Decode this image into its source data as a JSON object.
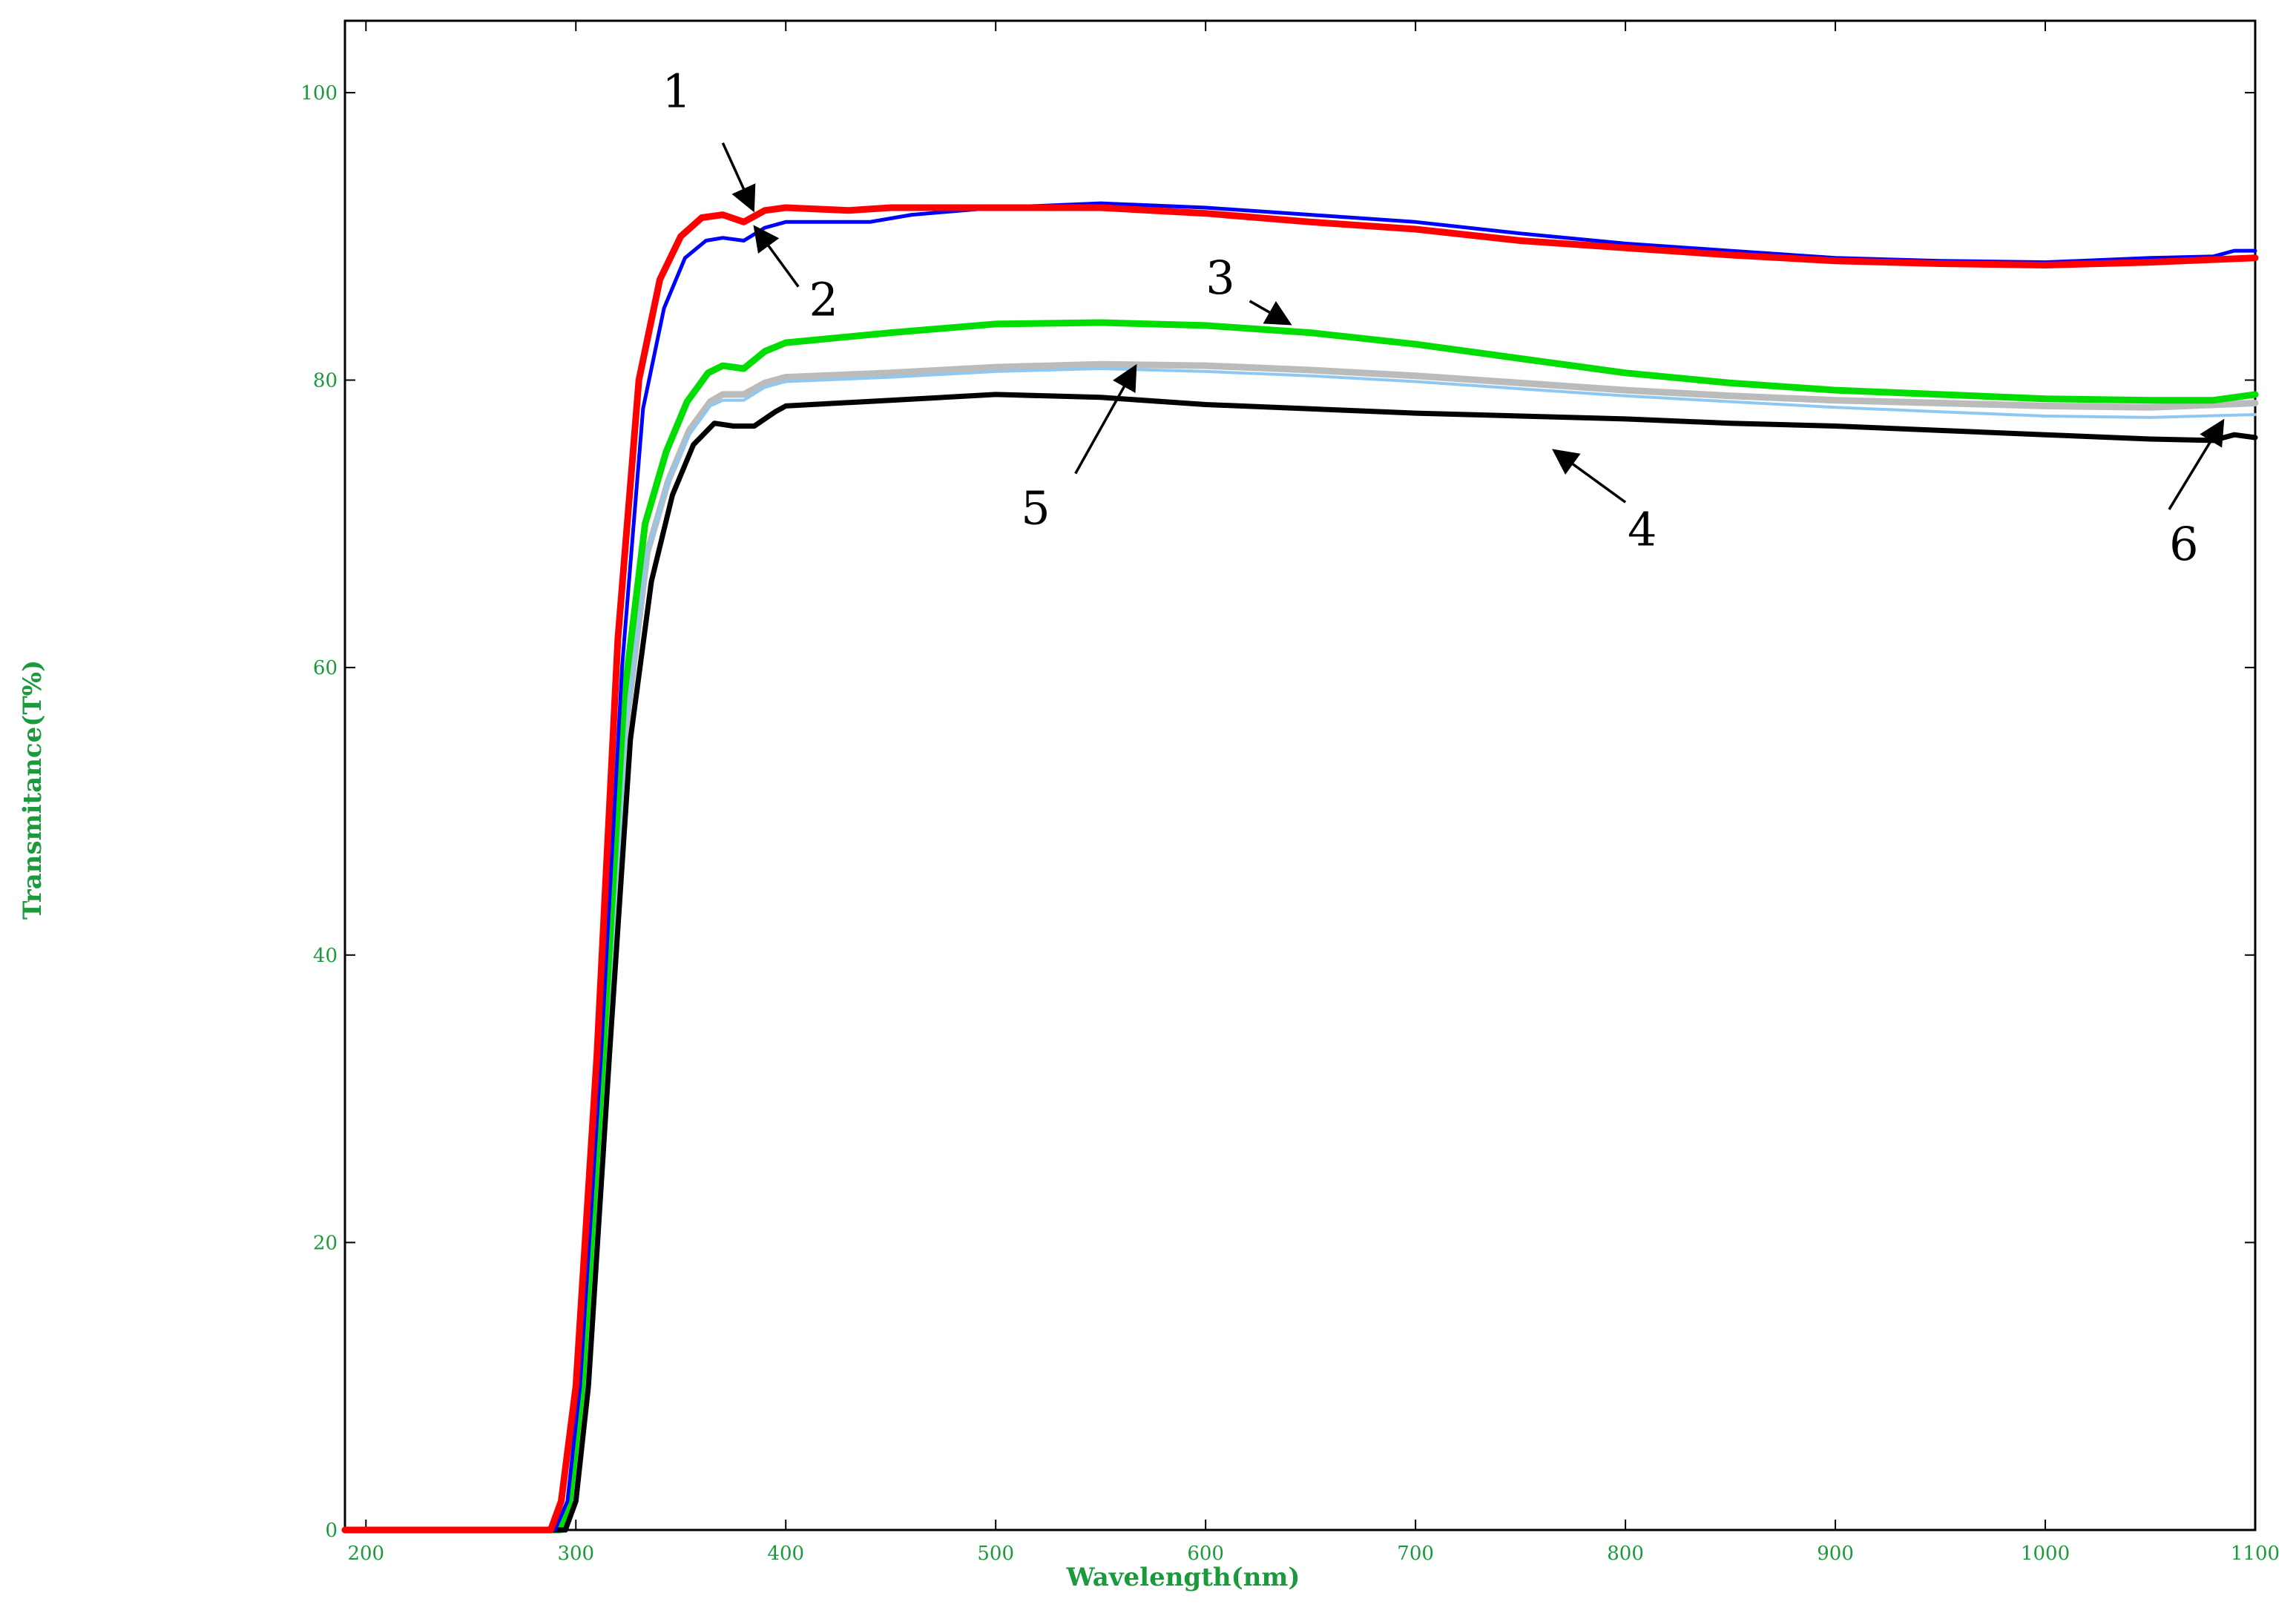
{
  "chart_data": {
    "type": "line",
    "title": "",
    "xlabel": "Wavelength(nm)",
    "ylabel": "Transmitance(T%)",
    "xlim": [
      190,
      1100
    ],
    "ylim": [
      0,
      105
    ],
    "x_ticks": [
      200,
      300,
      400,
      500,
      600,
      700,
      800,
      900,
      1000,
      1100
    ],
    "y_ticks": [
      0,
      20,
      40,
      60,
      80,
      100
    ],
    "grid": false,
    "legend": "none",
    "series": [
      {
        "color": "#ff0000",
        "points": [
          [
            190,
            0
          ],
          [
            288,
            0
          ],
          [
            293,
            2
          ],
          [
            300,
            10
          ],
          [
            310,
            33
          ],
          [
            320,
            62
          ],
          [
            330,
            80
          ],
          [
            340,
            87
          ],
          [
            350,
            90
          ],
          [
            360,
            91.3
          ],
          [
            370,
            91.5
          ],
          [
            380,
            91
          ],
          [
            390,
            91.8
          ],
          [
            400,
            92
          ],
          [
            430,
            91.8
          ],
          [
            450,
            92
          ],
          [
            500,
            92
          ],
          [
            550,
            92
          ],
          [
            600,
            91.6
          ],
          [
            650,
            91
          ],
          [
            700,
            90.5
          ],
          [
            750,
            89.7
          ],
          [
            800,
            89.2
          ],
          [
            850,
            88.7
          ],
          [
            900,
            88.3
          ],
          [
            950,
            88.1
          ],
          [
            1000,
            88
          ],
          [
            1050,
            88.2
          ],
          [
            1100,
            88.5
          ]
        ]
      },
      {
        "color": "#0000ff",
        "points": [
          [
            190,
            0
          ],
          [
            290,
            0
          ],
          [
            296,
            2
          ],
          [
            302,
            10
          ],
          [
            312,
            33
          ],
          [
            322,
            60
          ],
          [
            332,
            78
          ],
          [
            342,
            85
          ],
          [
            352,
            88.5
          ],
          [
            362,
            89.7
          ],
          [
            370,
            89.9
          ],
          [
            380,
            89.7
          ],
          [
            390,
            90.6
          ],
          [
            400,
            91
          ],
          [
            440,
            91
          ],
          [
            460,
            91.5
          ],
          [
            500,
            92
          ],
          [
            550,
            92.3
          ],
          [
            600,
            92
          ],
          [
            650,
            91.5
          ],
          [
            700,
            91
          ],
          [
            750,
            90.2
          ],
          [
            800,
            89.5
          ],
          [
            850,
            89
          ],
          [
            900,
            88.5
          ],
          [
            950,
            88.3
          ],
          [
            1000,
            88.2
          ],
          [
            1050,
            88.5
          ],
          [
            1080,
            88.6
          ],
          [
            1090,
            89
          ],
          [
            1100,
            89
          ]
        ]
      },
      {
        "color": "#00dd00",
        "points": [
          [
            190,
            0
          ],
          [
            292,
            0
          ],
          [
            297,
            2
          ],
          [
            303,
            10
          ],
          [
            313,
            33
          ],
          [
            323,
            58
          ],
          [
            333,
            70
          ],
          [
            343,
            75
          ],
          [
            353,
            78.5
          ],
          [
            363,
            80.5
          ],
          [
            370,
            81
          ],
          [
            380,
            80.8
          ],
          [
            390,
            82
          ],
          [
            400,
            82.6
          ],
          [
            450,
            83.3
          ],
          [
            500,
            83.9
          ],
          [
            550,
            84
          ],
          [
            600,
            83.8
          ],
          [
            650,
            83.3
          ],
          [
            700,
            82.5
          ],
          [
            750,
            81.5
          ],
          [
            800,
            80.5
          ],
          [
            850,
            79.8
          ],
          [
            900,
            79.3
          ],
          [
            950,
            79
          ],
          [
            1000,
            78.7
          ],
          [
            1050,
            78.6
          ],
          [
            1080,
            78.6
          ],
          [
            1100,
            79
          ]
        ]
      },
      {
        "color": "#000000",
        "points": [
          [
            190,
            0
          ],
          [
            295,
            0
          ],
          [
            300,
            2
          ],
          [
            306,
            10
          ],
          [
            316,
            33
          ],
          [
            326,
            55
          ],
          [
            336,
            66
          ],
          [
            346,
            72
          ],
          [
            356,
            75.5
          ],
          [
            366,
            77
          ],
          [
            375,
            76.8
          ],
          [
            385,
            76.8
          ],
          [
            395,
            77.8
          ],
          [
            400,
            78.2
          ],
          [
            450,
            78.6
          ],
          [
            500,
            79
          ],
          [
            550,
            78.8
          ],
          [
            600,
            78.3
          ],
          [
            650,
            78
          ],
          [
            700,
            77.7
          ],
          [
            750,
            77.5
          ],
          [
            800,
            77.3
          ],
          [
            850,
            77
          ],
          [
            900,
            76.8
          ],
          [
            950,
            76.5
          ],
          [
            1000,
            76.2
          ],
          [
            1050,
            75.9
          ],
          [
            1080,
            75.8
          ],
          [
            1090,
            76.2
          ],
          [
            1100,
            76
          ]
        ]
      },
      {
        "color": "#bbbbbb",
        "points": [
          [
            190,
            0
          ],
          [
            293,
            0
          ],
          [
            298,
            2
          ],
          [
            304,
            10
          ],
          [
            314,
            33
          ],
          [
            324,
            56
          ],
          [
            334,
            68
          ],
          [
            344,
            73
          ],
          [
            354,
            76.5
          ],
          [
            364,
            78.5
          ],
          [
            370,
            79
          ],
          [
            380,
            79
          ],
          [
            390,
            79.8
          ],
          [
            400,
            80.2
          ],
          [
            450,
            80.5
          ],
          [
            500,
            80.9
          ],
          [
            550,
            81.1
          ],
          [
            600,
            81
          ],
          [
            650,
            80.7
          ],
          [
            700,
            80.3
          ],
          [
            750,
            79.8
          ],
          [
            800,
            79.3
          ],
          [
            850,
            78.9
          ],
          [
            900,
            78.6
          ],
          [
            950,
            78.4
          ],
          [
            1000,
            78.2
          ],
          [
            1050,
            78.1
          ],
          [
            1100,
            78.4
          ]
        ]
      },
      {
        "color": "#8ec8f2",
        "points": [
          [
            190,
            0
          ],
          [
            293,
            0
          ],
          [
            298,
            2
          ],
          [
            304,
            10
          ],
          [
            314,
            33
          ],
          [
            324,
            56
          ],
          [
            334,
            68
          ],
          [
            344,
            73
          ],
          [
            354,
            76.2
          ],
          [
            364,
            78.2
          ],
          [
            370,
            78.6
          ],
          [
            380,
            78.6
          ],
          [
            390,
            79.5
          ],
          [
            400,
            79.9
          ],
          [
            450,
            80.2
          ],
          [
            500,
            80.6
          ],
          [
            550,
            80.8
          ],
          [
            600,
            80.6
          ],
          [
            650,
            80.3
          ],
          [
            700,
            79.9
          ],
          [
            750,
            79.4
          ],
          [
            800,
            78.9
          ],
          [
            850,
            78.5
          ],
          [
            900,
            78.1
          ],
          [
            950,
            77.8
          ],
          [
            1000,
            77.5
          ],
          [
            1050,
            77.4
          ],
          [
            1100,
            77.6
          ]
        ]
      }
    ],
    "annotations": [
      {
        "text": "1",
        "label_at": [
          348,
          99
        ],
        "arrow_from": [
          370,
          96.5
        ],
        "arrow_to": [
          384,
          92
        ]
      },
      {
        "text": "2",
        "label_at": [
          418,
          84.5
        ],
        "arrow_from": [
          406,
          86.5
        ],
        "arrow_to": [
          386,
          90.5
        ]
      },
      {
        "text": "3",
        "label_at": [
          607,
          86
        ],
        "arrow_from": [
          621,
          85.5
        ],
        "arrow_to": [
          639,
          84
        ]
      },
      {
        "text": "4",
        "label_at": [
          808,
          68.5
        ],
        "arrow_from": [
          800,
          71.5
        ],
        "arrow_to": [
          767,
          75
        ]
      },
      {
        "text": "5",
        "label_at": [
          519,
          70
        ],
        "arrow_from": [
          538,
          73.5
        ],
        "arrow_to": [
          566,
          80.8
        ]
      },
      {
        "text": "6",
        "label_at": [
          1066,
          67.5
        ],
        "arrow_from": [
          1059,
          71
        ],
        "arrow_to": [
          1084,
          77
        ]
      }
    ]
  }
}
